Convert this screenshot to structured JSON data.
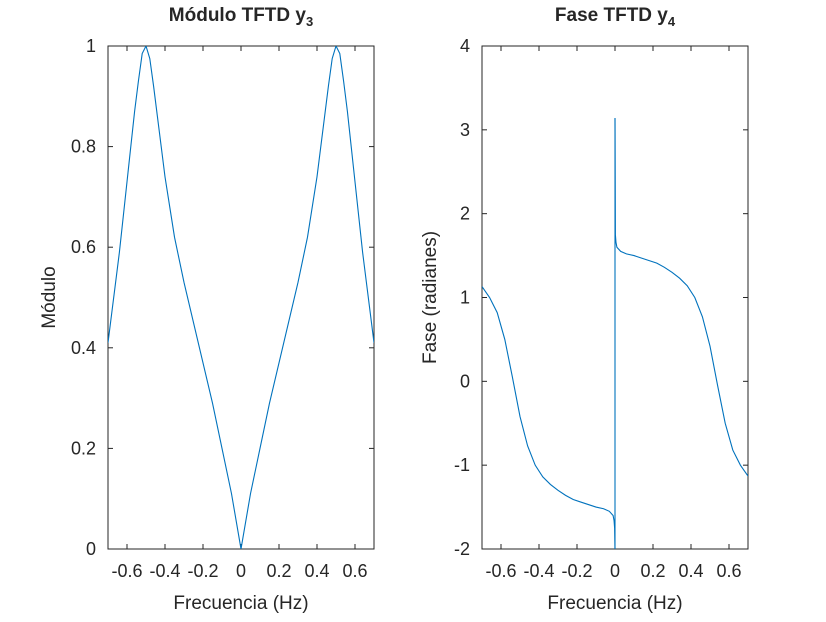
{
  "chart_data": [
    {
      "type": "line",
      "title": "Módulo TFTD y",
      "title_sub": "3",
      "xlabel": "Frecuencia (Hz)",
      "ylabel": "Módulo",
      "xlim": [
        -0.7,
        0.7
      ],
      "ylim": [
        0,
        1
      ],
      "xticks": [
        -0.6,
        -0.4,
        -0.2,
        0,
        0.2,
        0.4,
        0.6
      ],
      "xtick_labels": [
        "-0.6",
        "-0.4",
        "-0.2",
        "0",
        "0.2",
        "0.4",
        "0.6"
      ],
      "yticks": [
        0,
        0.2,
        0.4,
        0.6,
        0.8,
        1
      ],
      "ytick_labels": [
        "0",
        "0.2",
        "0.4",
        "0.6",
        "0.8",
        "1"
      ],
      "grid": false,
      "color": "#0072bd",
      "series": [
        {
          "x": [
            -0.7,
            -0.68,
            -0.66,
            -0.64,
            -0.62,
            -0.6,
            -0.58,
            -0.56,
            -0.54,
            -0.52,
            -0.5,
            -0.48,
            -0.46,
            -0.44,
            -0.42,
            -0.4,
            -0.35,
            -0.3,
            -0.25,
            -0.2,
            -0.15,
            -0.1,
            -0.05,
            0,
            0.05,
            0.1,
            0.15,
            0.2,
            0.25,
            0.3,
            0.35,
            0.4,
            0.42,
            0.44,
            0.46,
            0.48,
            0.5,
            0.52,
            0.54,
            0.56,
            0.58,
            0.6,
            0.62,
            0.64,
            0.66,
            0.68,
            0.7
          ],
          "y": [
            0.41,
            0.47,
            0.53,
            0.59,
            0.66,
            0.73,
            0.8,
            0.87,
            0.93,
            0.985,
            1.0,
            0.975,
            0.92,
            0.86,
            0.8,
            0.74,
            0.62,
            0.53,
            0.45,
            0.37,
            0.29,
            0.2,
            0.11,
            0.0,
            0.11,
            0.2,
            0.29,
            0.37,
            0.45,
            0.53,
            0.62,
            0.74,
            0.8,
            0.86,
            0.92,
            0.975,
            1.0,
            0.985,
            0.93,
            0.87,
            0.8,
            0.73,
            0.66,
            0.59,
            0.53,
            0.47,
            0.41
          ]
        }
      ]
    },
    {
      "type": "line",
      "title": "Fase TFTD y",
      "title_sub": "4",
      "xlabel": "Frecuencia (Hz)",
      "ylabel": "Fase (radianes)",
      "xlim": [
        -0.7,
        0.7
      ],
      "ylim": [
        -2,
        4
      ],
      "xticks": [
        -0.6,
        -0.4,
        -0.2,
        0,
        0.2,
        0.4,
        0.6
      ],
      "xtick_labels": [
        "-0.6",
        "-0.4",
        "-0.2",
        "0",
        "0.2",
        "0.4",
        "0.6"
      ],
      "yticks": [
        -2,
        -1,
        0,
        1,
        2,
        3,
        4
      ],
      "ytick_labels": [
        "-2",
        "-1",
        "0",
        "1",
        "2",
        "3",
        "4"
      ],
      "grid": false,
      "color": "#0072bd",
      "series": [
        {
          "x": [
            -0.7,
            -0.66,
            -0.62,
            -0.58,
            -0.54,
            -0.5,
            -0.46,
            -0.42,
            -0.38,
            -0.34,
            -0.3,
            -0.26,
            -0.22,
            -0.18,
            -0.14,
            -0.1,
            -0.06,
            -0.03,
            -0.01,
            -0.005,
            -0.002,
            0
          ],
          "y": [
            1.13,
            1.0,
            0.82,
            0.5,
            0.05,
            -0.42,
            -0.77,
            -1.0,
            -1.14,
            -1.23,
            -1.3,
            -1.36,
            -1.41,
            -1.44,
            -1.47,
            -1.5,
            -1.52,
            -1.55,
            -1.6,
            -1.66,
            -1.75,
            -2.0
          ]
        },
        {
          "x": [
            0,
            0
          ],
          "y": [
            -2.0,
            3.14
          ]
        },
        {
          "x": [
            0,
            0.002,
            0.005,
            0.01,
            0.03,
            0.06,
            0.1,
            0.14,
            0.18,
            0.22,
            0.26,
            0.3,
            0.34,
            0.38,
            0.42,
            0.46,
            0.5,
            0.54,
            0.58,
            0.62,
            0.66,
            0.7
          ],
          "y": [
            3.14,
            1.75,
            1.66,
            1.6,
            1.55,
            1.52,
            1.5,
            1.47,
            1.44,
            1.41,
            1.36,
            1.3,
            1.23,
            1.14,
            1.0,
            0.77,
            0.42,
            -0.05,
            -0.5,
            -0.82,
            -1.0,
            -1.13
          ]
        }
      ]
    }
  ]
}
